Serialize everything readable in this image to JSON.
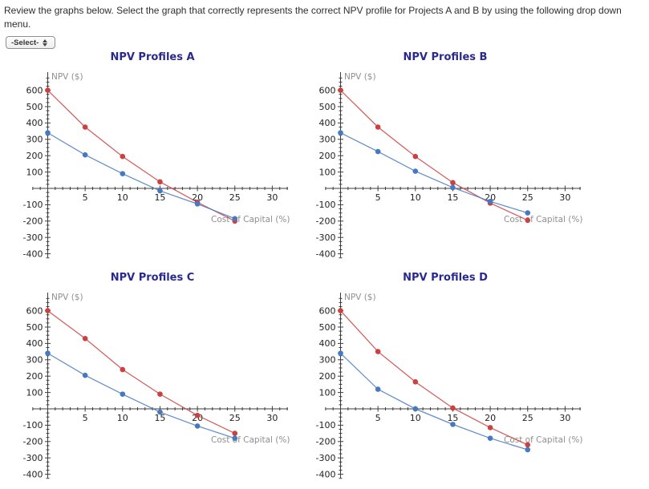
{
  "page": {
    "instructions": "Review the graphs below. Select the graph that correctly represents the correct NPV profile for Projects A and B by using the following drop down menu.",
    "dropdown": {
      "value": "-Select-"
    }
  },
  "colors": {
    "chart_title": "#2a2a8e",
    "red_series": "#cb4142",
    "blue_series": "#4779c1",
    "axis": "#3c3c3c",
    "axis_label": "#8f8f8f",
    "tick_label": "#222222"
  },
  "chart_data": [
    {
      "type": "line",
      "title": "NPV Profiles A",
      "xlabel": "Cost of Capital (%)",
      "ylabel": "NPV ($)",
      "x": [
        0,
        5,
        10,
        15,
        20,
        25
      ],
      "series": [
        {
          "name": "red-project",
          "color": "#cb4142",
          "values": [
            600,
            375,
            195,
            40,
            -85,
            -200
          ]
        },
        {
          "name": "blue-project",
          "color": "#4779c1",
          "values": [
            340,
            205,
            90,
            -15,
            -95,
            -185
          ]
        }
      ],
      "xlim": [
        -2,
        32
      ],
      "ylim": [
        -430,
        690
      ],
      "x_ticks": [
        5,
        10,
        15,
        20,
        25,
        30
      ],
      "y_ticks": [
        -400,
        -300,
        -200,
        -100,
        100,
        200,
        300,
        400,
        500,
        600
      ],
      "grid": false,
      "legend": "none"
    },
    {
      "type": "line",
      "title": "NPV Profiles B",
      "xlabel": "Cost of Capital (%)",
      "ylabel": "NPV ($)",
      "x": [
        0,
        5,
        10,
        15,
        20,
        25
      ],
      "series": [
        {
          "name": "red-project",
          "color": "#cb4142",
          "values": [
            600,
            375,
            195,
            35,
            -90,
            -195
          ]
        },
        {
          "name": "blue-project",
          "color": "#4779c1",
          "values": [
            340,
            225,
            105,
            5,
            -80,
            -150
          ]
        }
      ],
      "xlim": [
        -2,
        32
      ],
      "ylim": [
        -430,
        690
      ],
      "x_ticks": [
        5,
        10,
        15,
        20,
        25,
        30
      ],
      "y_ticks": [
        -400,
        -300,
        -200,
        -100,
        100,
        200,
        300,
        400,
        500,
        600
      ],
      "grid": false,
      "legend": "none"
    },
    {
      "type": "line",
      "title": "NPV Profiles C",
      "xlabel": "Cost of Capital (%)",
      "ylabel": "NPV ($)",
      "x": [
        0,
        5,
        10,
        15,
        20,
        25
      ],
      "series": [
        {
          "name": "red-project",
          "color": "#cb4142",
          "values": [
            600,
            430,
            240,
            90,
            -40,
            -150
          ]
        },
        {
          "name": "blue-project",
          "color": "#4779c1",
          "values": [
            340,
            205,
            90,
            -20,
            -105,
            -180
          ]
        }
      ],
      "xlim": [
        -2,
        32
      ],
      "ylim": [
        -430,
        690
      ],
      "x_ticks": [
        5,
        10,
        15,
        20,
        25,
        30
      ],
      "y_ticks": [
        -400,
        -300,
        -200,
        -100,
        100,
        200,
        300,
        400,
        500,
        600
      ],
      "grid": false,
      "legend": "none"
    },
    {
      "type": "line",
      "title": "NPV Profiles D",
      "xlabel": "Cost of Capital (%)",
      "ylabel": "NPV ($)",
      "x": [
        0,
        5,
        10,
        15,
        20,
        25
      ],
      "series": [
        {
          "name": "red-project",
          "color": "#cb4142",
          "values": [
            600,
            350,
            165,
            5,
            -115,
            -220
          ]
        },
        {
          "name": "blue-project",
          "color": "#4779c1",
          "values": [
            340,
            120,
            0,
            -95,
            -180,
            -250
          ]
        }
      ],
      "xlim": [
        -2,
        32
      ],
      "ylim": [
        -430,
        690
      ],
      "x_ticks": [
        5,
        10,
        15,
        20,
        25,
        30
      ],
      "y_ticks": [
        -400,
        -300,
        -200,
        -100,
        100,
        200,
        300,
        400,
        500,
        600
      ],
      "grid": false,
      "legend": "none"
    }
  ]
}
